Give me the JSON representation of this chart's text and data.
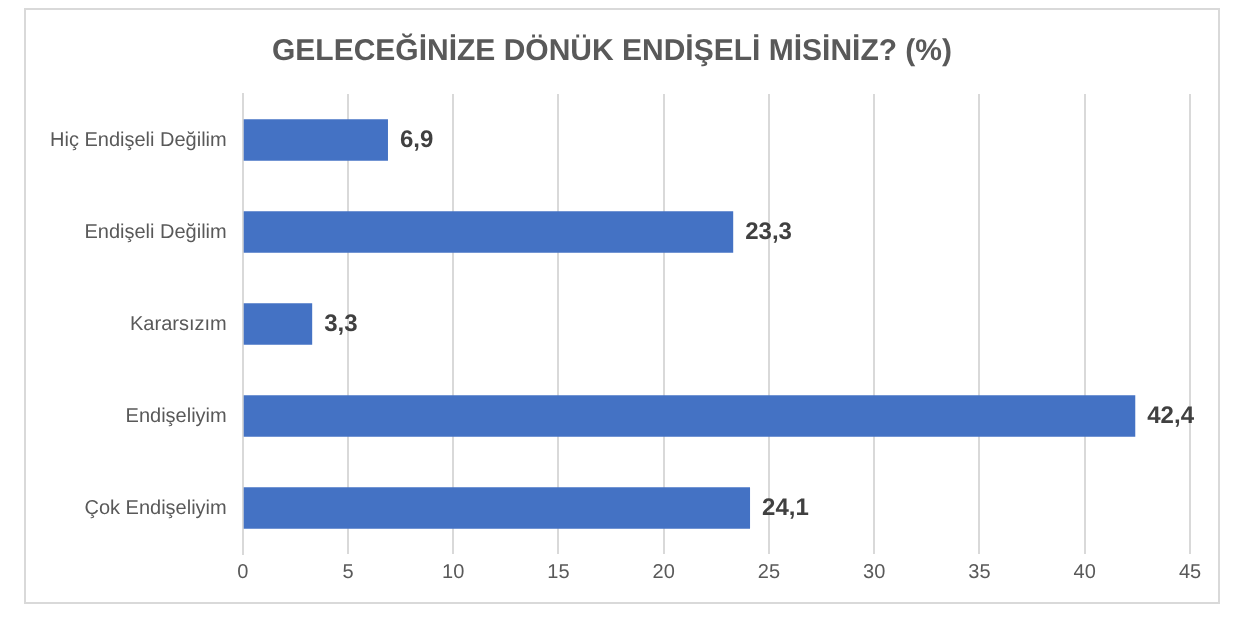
{
  "chart_data": {
    "type": "bar",
    "orientation": "horizontal",
    "title": "GELECEĞİNİZE DÖNÜK ENDİŞELİ MİSİNİZ? (%)",
    "categories": [
      "Hiç Endişeli Değilim",
      "Endişeli Değilim",
      "Kararsızım",
      "Endişeliyim",
      "Çok Endişeliyim"
    ],
    "values": [
      6.9,
      23.3,
      3.3,
      42.4,
      24.1
    ],
    "value_labels": [
      "6,9",
      "23,3",
      "3,3",
      "42,4",
      "24,1"
    ],
    "color": "#4472c4",
    "xlim": [
      0,
      45
    ],
    "xticks": [
      0,
      5,
      10,
      15,
      20,
      25,
      30,
      35,
      40,
      45
    ],
    "grid": "x",
    "legend": false
  }
}
